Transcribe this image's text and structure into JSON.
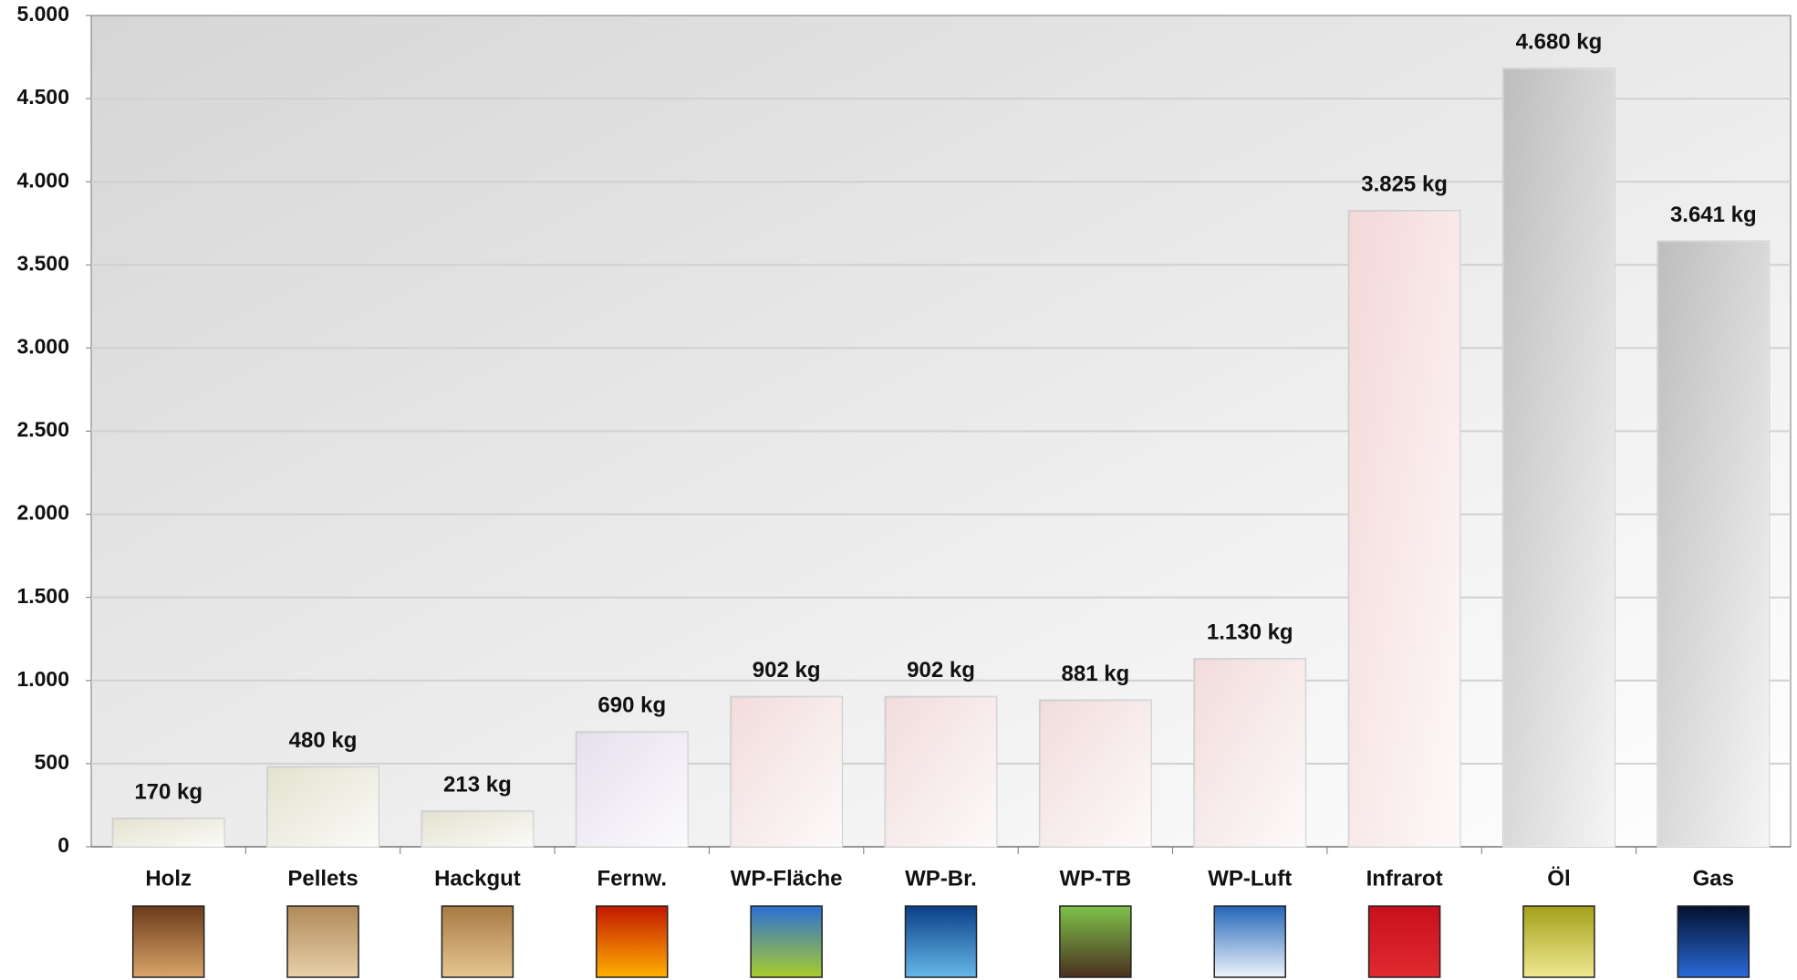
{
  "chart_data": {
    "type": "bar",
    "categories": [
      "Holz",
      "Pellets",
      "Hackgut",
      "Fernw.",
      "WP-Fläche",
      "WP-Br.",
      "WP-TB",
      "WP-Luft",
      "Infrarot",
      "Öl",
      "Gas"
    ],
    "values": [
      170,
      480,
      213,
      690,
      902,
      902,
      881,
      1130,
      3825,
      4680,
      3641
    ],
    "value_labels": [
      "170 kg",
      "480 kg",
      "213 kg",
      "690 kg",
      "902 kg",
      "902 kg",
      "881 kg",
      "1.130 kg",
      "3.825 kg",
      "4.680 kg",
      "3.641 kg"
    ],
    "colors": [
      "#e4e2cf",
      "#e4e2cf",
      "#e4e2cf",
      "#e6e0ee",
      "#f2dcdc",
      "#f2dcdc",
      "#f2dcdc",
      "#f2dcdc",
      "#f4d8d8",
      "#bdbdbd",
      "#bdbdbd"
    ],
    "ylim": [
      0,
      5000
    ],
    "yticks": [
      0,
      500,
      {
        "value": 1000,
        "label": "1.000"
      },
      {
        "value": 1500,
        "label": "1.500"
      },
      {
        "value": 2000,
        "label": "2.000"
      },
      {
        "value": 2500,
        "label": "2.500"
      },
      {
        "value": 3000,
        "label": "3.000"
      },
      {
        "value": 3500,
        "label": "3.500"
      },
      {
        "value": 4000,
        "label": "4.000"
      },
      {
        "value": 4500,
        "label": "4.500"
      },
      {
        "value": 5000,
        "label": "5.000"
      }
    ],
    "grid": true
  }
}
